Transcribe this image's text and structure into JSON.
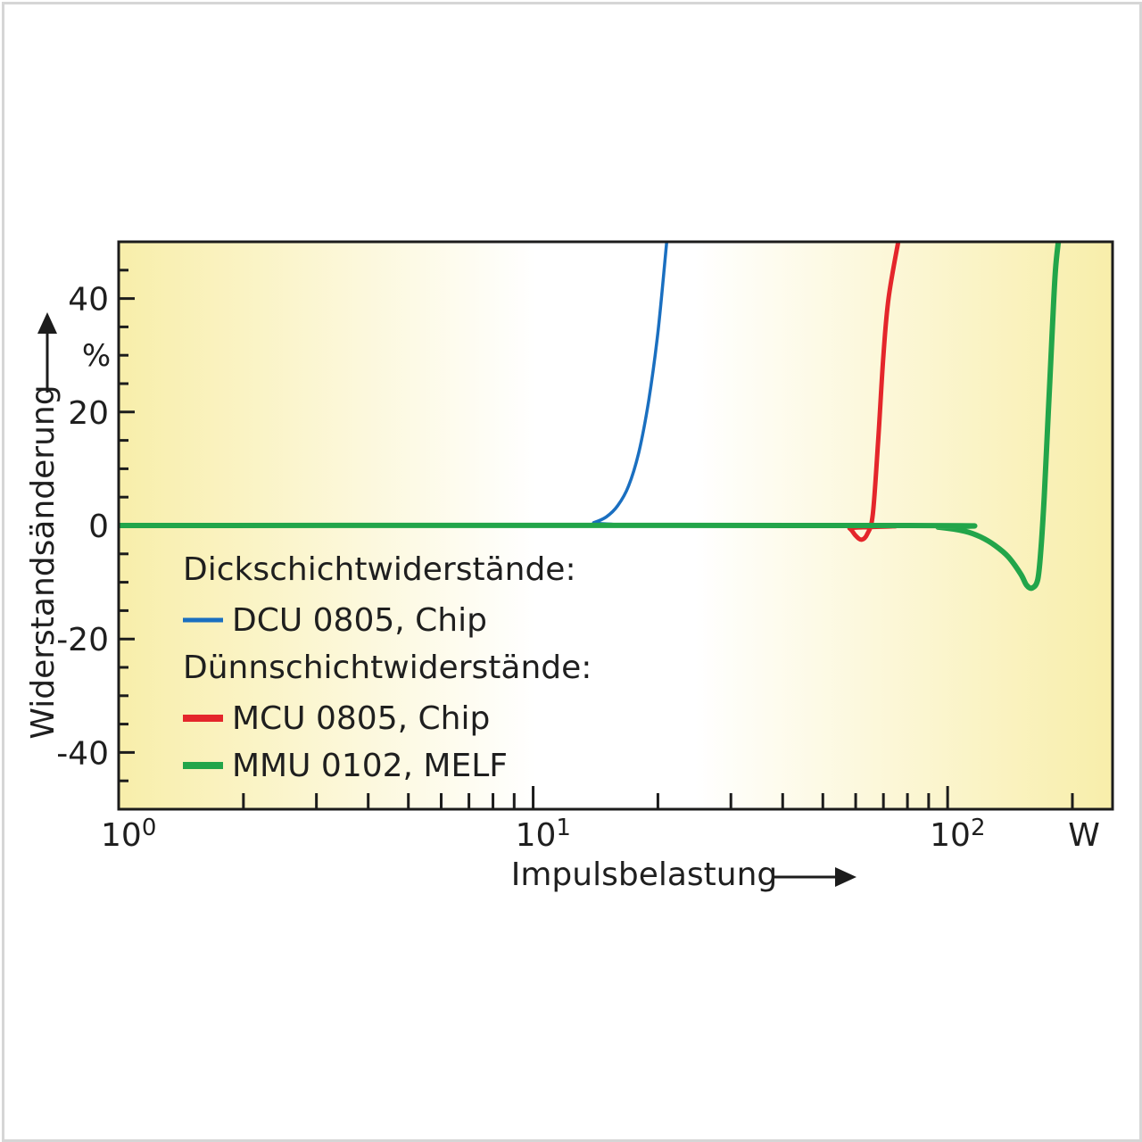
{
  "chart_data": {
    "type": "line",
    "xscale": "log",
    "xlim": [
      1,
      250
    ],
    "ylim": [
      -50,
      50
    ],
    "xlabel": "Impulsbelastung",
    "ylabel": "Widerstandsänderung",
    "xunit": "W",
    "yunit": "%",
    "xticks": [
      {
        "value": 1,
        "base": "10",
        "exp": "0"
      },
      {
        "value": 10,
        "base": "10",
        "exp": "1"
      },
      {
        "value": 100,
        "base": "10",
        "exp": "2"
      }
    ],
    "yticks": [
      {
        "value": 40,
        "label": "40"
      },
      {
        "value": 20,
        "label": "20"
      },
      {
        "value": 0,
        "label": "0"
      },
      {
        "value": -20,
        "label": "-20"
      },
      {
        "value": -40,
        "label": "-40"
      }
    ],
    "legend": {
      "placement": "lower-left",
      "groups": [
        {
          "heading": "Dickschichtwiderstände:",
          "entries": [
            0
          ]
        },
        {
          "heading": "Dünnschichtwiderstände:",
          "entries": [
            1,
            2
          ]
        }
      ]
    },
    "series": [
      {
        "name": "DCU 0805, Chip",
        "color": "#1a6fc0",
        "points": [
          [
            1,
            0
          ],
          [
            13,
            0
          ],
          [
            14,
            0.5
          ],
          [
            15,
            1.5
          ],
          [
            16,
            3.5
          ],
          [
            17,
            7
          ],
          [
            18,
            13
          ],
          [
            19,
            22
          ],
          [
            20,
            34
          ],
          [
            21,
            50
          ]
        ]
      },
      {
        "name": "MCU 0805, Chip",
        "color": "#e4262b",
        "points": [
          [
            1,
            0
          ],
          [
            55,
            0
          ],
          [
            58,
            -0.5
          ],
          [
            60,
            -1.8
          ],
          [
            62,
            -2.5
          ],
          [
            64,
            -1.5
          ],
          [
            66,
            2
          ],
          [
            68,
            15
          ],
          [
            70,
            30
          ],
          [
            72,
            40
          ],
          [
            76,
            50
          ]
        ]
      },
      {
        "name": "MMU 0102, MELF",
        "color": "#22a54a",
        "points": [
          [
            1,
            0
          ],
          [
            80,
            0
          ],
          [
            95,
            -0.3
          ],
          [
            110,
            -1
          ],
          [
            120,
            -2
          ],
          [
            130,
            -3.5
          ],
          [
            140,
            -5.5
          ],
          [
            150,
            -8.5
          ],
          [
            155,
            -10.5
          ],
          [
            160,
            -11
          ],
          [
            165,
            -9.5
          ],
          [
            168,
            -4
          ],
          [
            171,
            5
          ],
          [
            175,
            20
          ],
          [
            179,
            35
          ],
          [
            182,
            45
          ],
          [
            185,
            50
          ]
        ]
      }
    ]
  },
  "colors": {
    "background_edge": "#f8eeaa",
    "background_center": "#ffffff",
    "axis": "#1c1c1c"
  }
}
